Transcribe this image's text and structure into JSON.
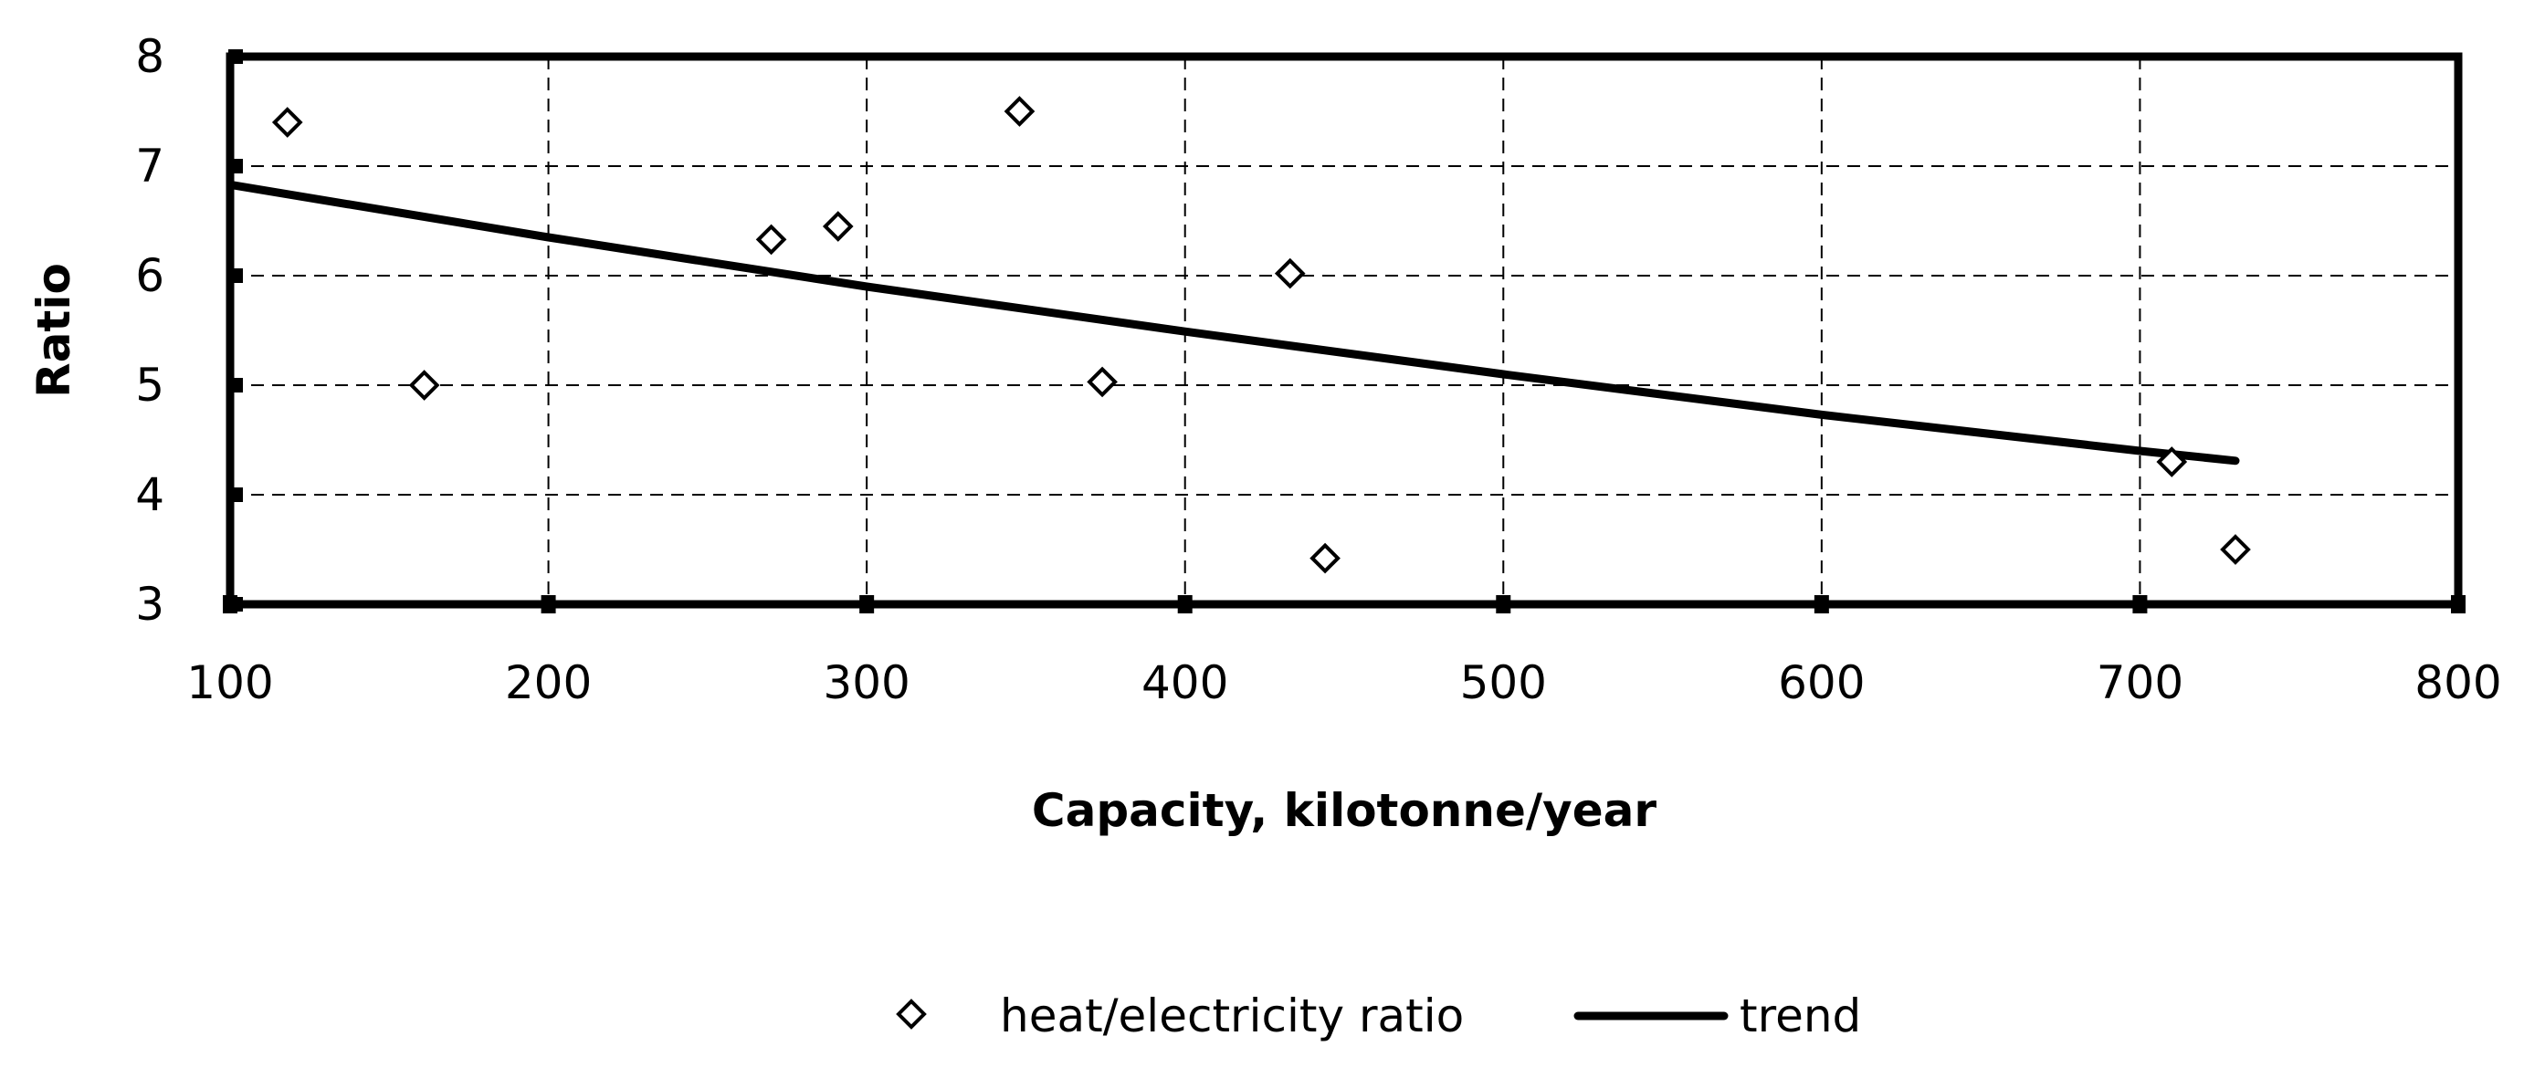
{
  "chart_data": {
    "type": "scatter",
    "title": "",
    "xlabel": "Capacity, kilotonne/year",
    "ylabel": "Ratio",
    "xlim": [
      100,
      800
    ],
    "ylim": [
      3,
      8
    ],
    "xticks": [
      100,
      200,
      300,
      400,
      500,
      600,
      700,
      800
    ],
    "yticks": [
      3,
      4,
      5,
      6,
      7,
      8
    ],
    "grid": true,
    "legend_position": "bottom",
    "series": [
      {
        "name": "heat/electricity ratio",
        "kind": "scatter",
        "marker": "diamond",
        "points": [
          {
            "x": 118,
            "y": 7.4
          },
          {
            "x": 161,
            "y": 5.0
          },
          {
            "x": 270,
            "y": 6.33
          },
          {
            "x": 291,
            "y": 6.45
          },
          {
            "x": 348,
            "y": 7.5
          },
          {
            "x": 374,
            "y": 5.03
          },
          {
            "x": 433,
            "y": 6.02
          },
          {
            "x": 444,
            "y": 3.42
          },
          {
            "x": 710,
            "y": 4.3
          },
          {
            "x": 730,
            "y": 3.5
          }
        ]
      },
      {
        "name": "trend",
        "kind": "line",
        "points": [
          {
            "x": 100,
            "y": 6.83
          },
          {
            "x": 200,
            "y": 6.35
          },
          {
            "x": 300,
            "y": 5.9
          },
          {
            "x": 400,
            "y": 5.49
          },
          {
            "x": 500,
            "y": 5.1
          },
          {
            "x": 600,
            "y": 4.73
          },
          {
            "x": 700,
            "y": 4.4
          },
          {
            "x": 730,
            "y": 4.31
          }
        ]
      }
    ]
  }
}
